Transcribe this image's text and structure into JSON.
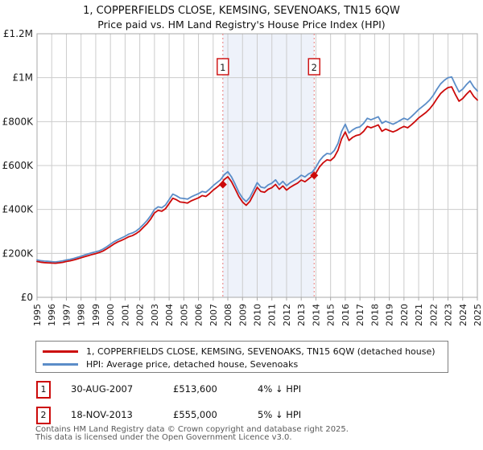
{
  "title": "1, COPPERFIELDS CLOSE, KEMSING, SEVENOAKS, TN15 6QW",
  "subtitle": "Price paid vs. HM Land Registry's House Price Index (HPI)",
  "chart_data": {
    "type": "line",
    "xlim": [
      1995,
      2025
    ],
    "ylim": [
      0,
      1200
    ],
    "unit": "thousands GBP",
    "x_ticks": [
      1995,
      1996,
      1997,
      1998,
      1999,
      2000,
      2001,
      2002,
      2003,
      2004,
      2005,
      2006,
      2007,
      2008,
      2009,
      2010,
      2011,
      2012,
      2013,
      2014,
      2015,
      2016,
      2017,
      2018,
      2019,
      2020,
      2021,
      2022,
      2023,
      2024,
      2025
    ],
    "y_ticks": [
      {
        "value": 0,
        "label": "£0"
      },
      {
        "value": 200,
        "label": "£200K"
      },
      {
        "value": 400,
        "label": "£400K"
      },
      {
        "value": 600,
        "label": "£600K"
      },
      {
        "value": 800,
        "label": "£800K"
      },
      {
        "value": 1000,
        "label": "£1M"
      },
      {
        "value": 1200,
        "label": "£1.2M"
      }
    ],
    "x_start": 1995,
    "x_step": 0.25,
    "grid": true,
    "legend_position": "bottom",
    "series": [
      {
        "name": "1, COPPERFIELDS CLOSE, KEMSING, SEVENOAKS, TN15 6QW (detached house)",
        "color": "#cc0a0a",
        "values": [
          163,
          160,
          158,
          157,
          156,
          155,
          157,
          159,
          163,
          166,
          170,
          175,
          180,
          185,
          190,
          195,
          199,
          204,
          211,
          221,
          232,
          243,
          252,
          259,
          267,
          276,
          281,
          290,
          302,
          319,
          336,
          357,
          384,
          396,
          392,
          403,
          427,
          451,
          444,
          434,
          432,
          429,
          439,
          446,
          453,
          463,
          459,
          472,
          488,
          501,
          514,
          536,
          549,
          526,
          494,
          459,
          434,
          419,
          437,
          468,
          501,
          482,
          478,
          492,
          499,
          514,
          492,
          507,
          488,
          501,
          511,
          520,
          534,
          526,
          539,
          552,
          565,
          594,
          613,
          626,
          623,
          638,
          669,
          721,
          753,
          714,
          728,
          737,
          741,
          756,
          778,
          772,
          778,
          785,
          756,
          766,
          759,
          753,
          760,
          770,
          778,
          772,
          785,
          800,
          817,
          829,
          842,
          858,
          879,
          905,
          928,
          943,
          955,
          958,
          924,
          893,
          905,
          924,
          941,
          915,
          898
        ]
      },
      {
        "name": "HPI: Average price, detached house, Sevenoaks",
        "color": "#5b8dc8",
        "values": [
          170,
          167,
          165,
          164,
          162,
          161,
          163,
          166,
          170,
          173,
          177,
          182,
          187,
          193,
          198,
          203,
          207,
          212,
          220,
          230,
          242,
          253,
          262,
          270,
          278,
          288,
          293,
          302,
          315,
          332,
          350,
          372,
          400,
          412,
          408,
          420,
          445,
          470,
          462,
          452,
          450,
          447,
          457,
          465,
          472,
          482,
          478,
          492,
          508,
          522,
          535,
          558,
          572,
          548,
          515,
          478,
          452,
          436,
          455,
          488,
          522,
          502,
          498,
          512,
          520,
          535,
          512,
          528,
          508,
          522,
          532,
          542,
          556,
          548,
          562,
          570,
          592,
          622,
          642,
          655,
          652,
          668,
          700,
          755,
          788,
          748,
          762,
          772,
          776,
          792,
          815,
          808,
          815,
          822,
          792,
          802,
          795,
          788,
          796,
          806,
          815,
          808,
          822,
          838,
          855,
          868,
          882,
          898,
          920,
          948,
          972,
          988,
          1000,
          1003,
          968,
          935,
          948,
          968,
          985,
          958,
          940
        ]
      }
    ],
    "sales": [
      {
        "n": "1",
        "x": 2007.66,
        "value": 513.6
      },
      {
        "n": "2",
        "x": 2013.88,
        "value": 555
      }
    ],
    "shaded_region": [
      2007.66,
      2013.88
    ],
    "colors": {
      "grid": "#cccccc",
      "border": "#a8a8a8",
      "band": "#eef2fa",
      "dashed": "#e87a7a",
      "marker": "#cc0a0a"
    }
  },
  "legend": [
    {
      "label": "1, COPPERFIELDS CLOSE, KEMSING, SEVENOAKS, TN15 6QW (detached house)",
      "color": "#cc0a0a"
    },
    {
      "label": "HPI: Average price, detached house, Sevenoaks",
      "color": "#5b8dc8"
    }
  ],
  "transactions": [
    {
      "num": "1",
      "date": "30-AUG-2007",
      "price": "£513,600",
      "hpi": "4% ↓ HPI"
    },
    {
      "num": "2",
      "date": "18-NOV-2013",
      "price": "£555,000",
      "hpi": "5% ↓ HPI"
    }
  ],
  "footer": {
    "line1": "Contains HM Land Registry data © Crown copyright and database right 2025.",
    "line2": "This data is licensed under the Open Government Licence v3.0."
  }
}
